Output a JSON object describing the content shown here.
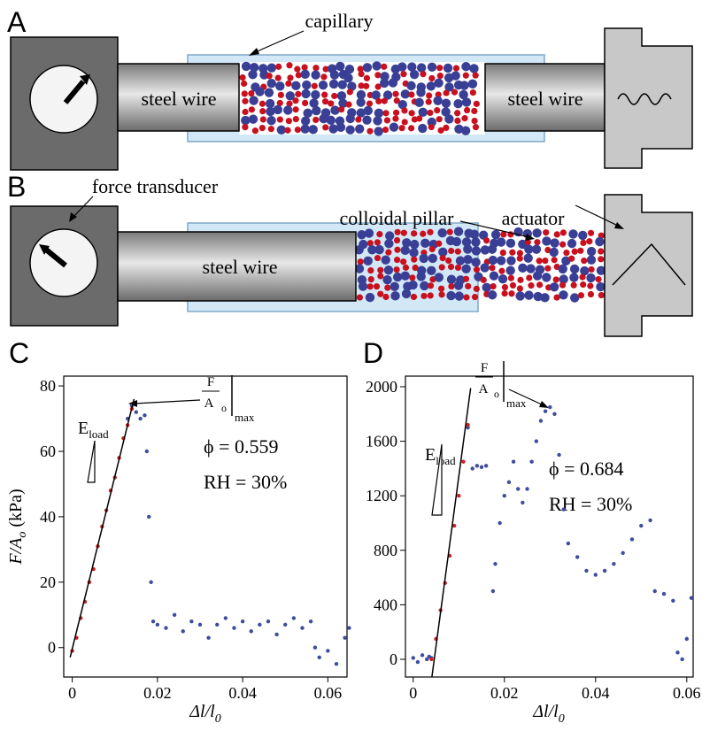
{
  "panels": [
    "A",
    "B",
    "C",
    "D"
  ],
  "diagram_a": {
    "capillary": "capillary",
    "wire_left": "steel wire",
    "wire_right": "steel wire"
  },
  "diagram_b": {
    "force_transducer": "force transducer",
    "wire": "steel wire",
    "colloidal_pillar": "colloidal pillar",
    "actuator": "actuator"
  },
  "chart_data": [
    {
      "type": "scatter",
      "xlabel": [
        "Δl/l",
        "0"
      ],
      "ylabel": [
        "F/A",
        "o",
        " (kPa)"
      ],
      "xlim": [
        -0.002,
        0.0645
      ],
      "ylim": [
        -9,
        83
      ],
      "xticks": [
        0,
        0.02,
        0.04,
        0.06
      ],
      "yticks": [
        0,
        20,
        40,
        60,
        80
      ],
      "annotations": {
        "eload": [
          "E",
          "load"
        ],
        "fmax": [
          "F",
          "A",
          "o",
          "max"
        ],
        "phi": "ϕ = 0.559",
        "rh": "RH = 30%"
      },
      "series": [
        {
          "color": "#3f4d9e",
          "mode": "points",
          "x": [
            0.013,
            0.014,
            0.015,
            0.016,
            0.017,
            0.0175,
            0.018,
            0.0185,
            0.019,
            0.02,
            0.022,
            0.024,
            0.026,
            0.028,
            0.03,
            0.032,
            0.034,
            0.036,
            0.038,
            0.04,
            0.042,
            0.044,
            0.046,
            0.048,
            0.05,
            0.052,
            0.054,
            0.056,
            0.057,
            0.058,
            0.06,
            0.062,
            0.064,
            0.065
          ],
          "values": [
            70,
            74,
            72,
            70,
            71,
            60,
            40,
            20,
            8,
            7,
            6,
            10,
            5,
            8,
            7,
            3,
            7,
            9,
            6,
            8,
            5,
            7,
            8,
            4,
            7,
            9,
            6,
            8,
            0,
            -3,
            -1,
            -5,
            3,
            6
          ]
        },
        {
          "color": "#d01f1f",
          "mode": "points",
          "x": [
            0,
            0.001,
            0.002,
            0.003,
            0.004,
            0.005,
            0.006,
            0.007,
            0.008,
            0.009,
            0.01,
            0.011,
            0.012,
            0.013,
            0.014
          ],
          "values": [
            -1,
            3,
            9,
            14,
            20,
            24,
            31,
            37,
            42,
            48,
            52,
            58,
            64,
            68,
            73
          ]
        },
        {
          "color": "#000000",
          "mode": "line",
          "x": [
            -0.0005,
            0.0145
          ],
          "values": [
            -3,
            76
          ]
        }
      ]
    },
    {
      "type": "scatter",
      "xlabel": [
        "Δl/l",
        "0"
      ],
      "ylabel": [],
      "xlim": [
        -0.0017,
        0.0614
      ],
      "ylim": [
        -130,
        2078
      ],
      "xticks": [
        0,
        0.02,
        0.04,
        0.06
      ],
      "yticks": [
        0,
        400,
        800,
        1200,
        1600,
        2000
      ],
      "annotations": {
        "eload": [
          "E",
          "load"
        ],
        "fmax": [
          "F",
          "A",
          "o",
          "max"
        ],
        "phi": "ϕ = 0.684",
        "rh": "RH = 30%"
      },
      "series": [
        {
          "color": "#3f4d9e",
          "mode": "points",
          "x": [
            0,
            0.001,
            0.002,
            0.003,
            0.0035,
            0.004,
            0.012,
            0.013,
            0.014,
            0.015,
            0.016,
            0.0175,
            0.018,
            0.019,
            0.02,
            0.021,
            0.022,
            0.023,
            0.024,
            0.025,
            0.026,
            0.027,
            0.028,
            0.029,
            0.03,
            0.031,
            0.032,
            0.033,
            0.034,
            0.036,
            0.038,
            0.04,
            0.042,
            0.044,
            0.046,
            0.048,
            0.05,
            0.052,
            0.053,
            0.055,
            0.057,
            0.058,
            0.059,
            0.06,
            0.061
          ],
          "values": [
            10,
            -20,
            30,
            0,
            20,
            10,
            1700,
            1400,
            1420,
            1410,
            1420,
            500,
            700,
            1000,
            1200,
            1300,
            1450,
            1250,
            1150,
            1250,
            1450,
            1600,
            1750,
            1820,
            1850,
            1800,
            1500,
            1100,
            850,
            750,
            650,
            620,
            650,
            700,
            780,
            880,
            980,
            1020,
            500,
            480,
            430,
            50,
            0,
            150,
            450
          ]
        },
        {
          "color": "#d01f1f",
          "mode": "points",
          "x": [
            0.004,
            0.005,
            0.006,
            0.007,
            0.008,
            0.009,
            0.01,
            0.011,
            0.012
          ],
          "values": [
            0,
            150,
            360,
            560,
            760,
            980,
            1200,
            1450,
            1720
          ]
        },
        {
          "color": "#000000",
          "mode": "line",
          "x": [
            0.0041,
            0.0126
          ],
          "values": [
            -130,
            1990
          ]
        }
      ]
    }
  ]
}
